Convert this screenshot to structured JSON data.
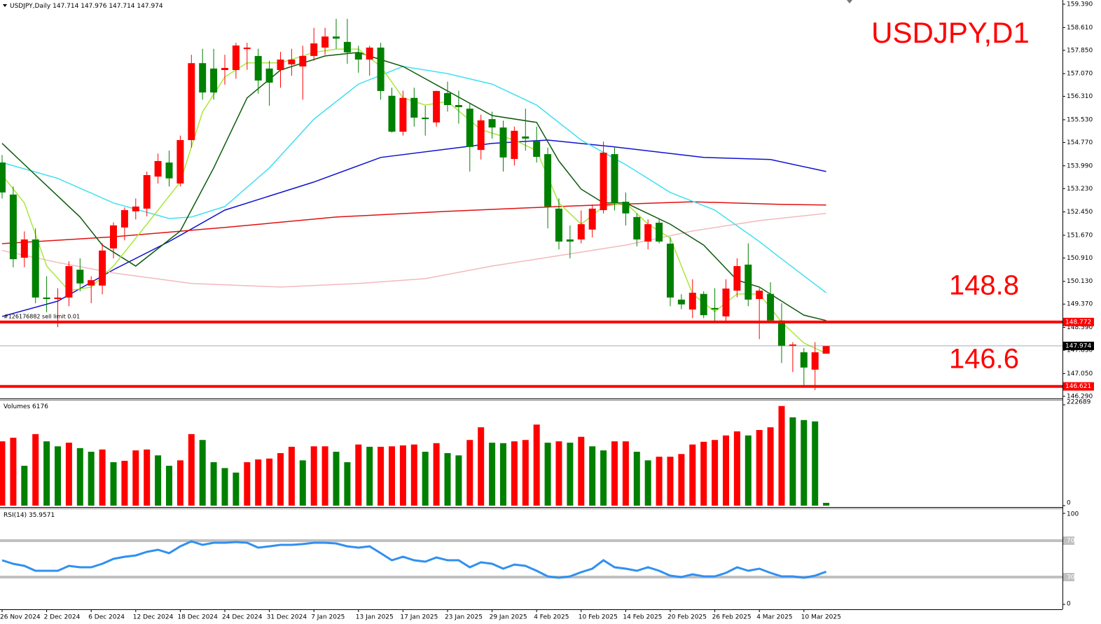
{
  "chart_data": {
    "type": "candlestick",
    "symbol": "USDJPY,Daily",
    "title": "USDJPY,D1",
    "categories": [
      "26 Nov 2024",
      null,
      null,
      null,
      "2 Dec 2024",
      null,
      null,
      null,
      "6 Dec 2024",
      null,
      null,
      null,
      "12 Dec 2024",
      null,
      null,
      null,
      "18 Dec 2024",
      null,
      null,
      null,
      "24 Dec 2024",
      null,
      null,
      null,
      "31 Dec 2024",
      null,
      null,
      null,
      "7 Jan 2025",
      null,
      null,
      null,
      "13 Jan 2025",
      null,
      null,
      null,
      "17 Jan 2025",
      null,
      null,
      null,
      "23 Jan 2025",
      null,
      null,
      null,
      "29 Jan 2025",
      null,
      null,
      null,
      "4 Feb 2025",
      null,
      null,
      null,
      "10 Feb 2025",
      null,
      null,
      null,
      "14 Feb 2025",
      null,
      null,
      null,
      "20 Feb 2025",
      null,
      null,
      null,
      "26 Feb 2025",
      null,
      null,
      null,
      "4 Mar 2025",
      null,
      null,
      null,
      "10 Mar 2025",
      null,
      null
    ],
    "candles": {
      "up_color": "#ff0000",
      "down_color": "#008000",
      "ohlc": [
        [
          154.1,
          154.35,
          152.9,
          153.1
        ],
        [
          153.03,
          153.3,
          150.6,
          150.87
        ],
        [
          150.92,
          151.8,
          150.6,
          151.53
        ],
        [
          151.53,
          151.9,
          149.4,
          149.59
        ],
        [
          149.59,
          150.3,
          149.1,
          149.54
        ],
        [
          149.54,
          149.9,
          148.6,
          149.59
        ],
        [
          149.59,
          150.8,
          149.3,
          150.64
        ],
        [
          150.52,
          150.9,
          149.8,
          150.06
        ],
        [
          149.99,
          150.3,
          149.4,
          150.17
        ],
        [
          149.99,
          151.4,
          149.7,
          151.16
        ],
        [
          151.23,
          152.1,
          150.9,
          152.0
        ],
        [
          151.93,
          152.6,
          151.5,
          152.51
        ],
        [
          152.47,
          152.9,
          152.2,
          152.63
        ],
        [
          152.56,
          153.8,
          152.3,
          153.68
        ],
        [
          153.63,
          154.4,
          153.4,
          154.15
        ],
        [
          154.1,
          154.5,
          153.3,
          153.57
        ],
        [
          153.4,
          155.0,
          153.3,
          154.85
        ],
        [
          154.85,
          157.7,
          154.6,
          157.42
        ],
        [
          157.42,
          157.9,
          156.2,
          156.44
        ],
        [
          157.24,
          157.9,
          156.2,
          156.44
        ],
        [
          157.19,
          157.7,
          156.7,
          157.26
        ],
        [
          157.19,
          158.1,
          156.9,
          158.01
        ],
        [
          157.89,
          158.1,
          157.2,
          157.94
        ],
        [
          157.66,
          157.9,
          156.4,
          156.84
        ],
        [
          157.24,
          157.5,
          156.0,
          156.77
        ],
        [
          157.19,
          157.8,
          156.6,
          157.54
        ],
        [
          157.38,
          157.9,
          157.0,
          157.54
        ],
        [
          157.31,
          158.0,
          156.2,
          157.66
        ],
        [
          157.66,
          158.6,
          157.5,
          158.08
        ],
        [
          157.94,
          158.6,
          157.7,
          158.31
        ],
        [
          158.31,
          158.9,
          157.9,
          158.24
        ],
        [
          158.13,
          158.9,
          157.4,
          157.78
        ],
        [
          157.78,
          158.0,
          157.1,
          157.54
        ],
        [
          157.54,
          158.0,
          157.0,
          157.94
        ],
        [
          157.94,
          158.1,
          156.2,
          156.49
        ],
        [
          156.33,
          156.6,
          155.1,
          155.13
        ],
        [
          155.13,
          156.5,
          155.0,
          156.26
        ],
        [
          156.26,
          156.6,
          155.3,
          155.6
        ],
        [
          155.6,
          156.0,
          155.0,
          155.55
        ],
        [
          155.44,
          156.5,
          155.3,
          156.49
        ],
        [
          156.42,
          156.8,
          155.8,
          156.02
        ],
        [
          156.02,
          156.5,
          155.4,
          155.95
        ],
        [
          155.9,
          156.1,
          153.8,
          154.62
        ],
        [
          154.52,
          155.7,
          154.2,
          155.51
        ],
        [
          155.55,
          155.8,
          154.9,
          155.27
        ],
        [
          155.27,
          155.5,
          153.8,
          154.27
        ],
        [
          154.22,
          155.3,
          154.0,
          155.16
        ],
        [
          154.97,
          155.9,
          154.5,
          154.9
        ],
        [
          154.81,
          155.3,
          154.1,
          154.29
        ],
        [
          154.38,
          154.6,
          151.9,
          152.63
        ],
        [
          152.56,
          152.9,
          151.2,
          151.46
        ],
        [
          151.53,
          152.0,
          150.9,
          151.46
        ],
        [
          151.53,
          152.5,
          151.4,
          152.04
        ],
        [
          151.86,
          152.7,
          151.6,
          152.56
        ],
        [
          152.51,
          154.8,
          152.4,
          154.43
        ],
        [
          154.38,
          154.6,
          152.5,
          152.75
        ],
        [
          152.79,
          153.1,
          152.0,
          152.4
        ],
        [
          152.28,
          152.4,
          151.3,
          151.53
        ],
        [
          151.46,
          152.2,
          151.2,
          152.04
        ],
        [
          152.09,
          152.2,
          151.4,
          151.46
        ],
        [
          151.39,
          151.6,
          149.3,
          149.59
        ],
        [
          149.52,
          149.7,
          149.2,
          149.36
        ],
        [
          149.19,
          150.2,
          148.9,
          149.75
        ],
        [
          149.71,
          149.8,
          148.9,
          149.0
        ],
        [
          149.24,
          149.9,
          148.8,
          149.19
        ],
        [
          148.96,
          150.2,
          148.8,
          149.89
        ],
        [
          149.82,
          150.9,
          149.6,
          150.64
        ],
        [
          150.69,
          151.4,
          149.3,
          149.52
        ],
        [
          149.54,
          149.9,
          148.2,
          149.82
        ],
        [
          149.71,
          150.1,
          148.8,
          148.82
        ],
        [
          148.82,
          149.4,
          147.4,
          147.97
        ],
        [
          147.97,
          148.1,
          147.1,
          148.02
        ],
        [
          147.76,
          147.9,
          146.6,
          147.25
        ],
        [
          147.18,
          148.1,
          146.5,
          147.76
        ],
        [
          147.714,
          147.976,
          147.714,
          147.974
        ]
      ]
    },
    "moving_averages": [
      {
        "color": "#1010d0",
        "x": [
          0,
          5,
          10,
          15,
          20,
          28,
          34,
          44,
          49,
          55,
          63,
          69,
          74
        ],
        "values": [
          148.96,
          149.47,
          150.52,
          151.46,
          152.51,
          153.45,
          154.27,
          154.74,
          154.85,
          154.62,
          154.27,
          154.2,
          153.8
        ]
      },
      {
        "color": "#e01010",
        "x": [
          0,
          10,
          20,
          30,
          40,
          50,
          55,
          62,
          70,
          74
        ],
        "values": [
          151.39,
          151.62,
          151.93,
          152.28,
          152.47,
          152.63,
          152.7,
          152.79,
          152.7,
          152.68
        ]
      },
      {
        "color": "#f4b8bc",
        "x": [
          0,
          5,
          10,
          17,
          25,
          32,
          38,
          44,
          50,
          56,
          62,
          68,
          74
        ],
        "values": [
          151.16,
          150.76,
          150.41,
          150.06,
          149.94,
          150.06,
          150.22,
          150.64,
          150.99,
          151.34,
          151.81,
          152.16,
          152.4
        ]
      },
      {
        "color": "#40e0f0",
        "x": [
          0,
          5,
          10,
          15,
          17,
          20,
          24,
          28,
          32,
          36,
          40,
          44,
          48,
          52,
          56,
          60,
          64,
          68,
          70,
          74
        ],
        "values": [
          154.1,
          153.57,
          152.75,
          152.23,
          152.28,
          152.63,
          153.92,
          155.55,
          156.72,
          157.31,
          157.07,
          156.72,
          156.02,
          154.85,
          154.03,
          153.1,
          152.51,
          151.46,
          150.88,
          149.75
        ]
      },
      {
        "color": "#0b5a0b",
        "x": [
          0,
          3,
          7,
          9,
          12,
          16,
          19,
          22,
          25,
          29,
          32,
          34,
          36,
          40,
          44,
          48,
          50,
          52,
          54,
          56,
          60,
          63,
          66,
          68,
          70,
          72,
          74
        ],
        "values": [
          154.74,
          153.68,
          152.28,
          151.34,
          150.64,
          151.81,
          153.92,
          156.26,
          157.19,
          157.66,
          157.78,
          157.54,
          157.31,
          156.49,
          155.67,
          155.44,
          154.15,
          153.21,
          152.75,
          152.75,
          152.04,
          151.34,
          150.17,
          149.94,
          149.47,
          149.0,
          148.82
        ]
      },
      {
        "color": "#a8e83a",
        "x": [
          0,
          2,
          4,
          6,
          8,
          10,
          13,
          16,
          18,
          20,
          22,
          25,
          28,
          30,
          32,
          34,
          36,
          38,
          40,
          43,
          46,
          48,
          50,
          52,
          54,
          56,
          58,
          60,
          62,
          64,
          66,
          68,
          70,
          72,
          74
        ],
        "values": [
          153.68,
          152.75,
          150.64,
          149.82,
          149.94,
          150.64,
          152.04,
          153.45,
          155.79,
          156.96,
          157.43,
          157.43,
          157.78,
          157.89,
          157.89,
          157.31,
          156.26,
          156.02,
          156.14,
          155.2,
          154.85,
          154.5,
          152.75,
          152.04,
          152.63,
          152.75,
          152.04,
          151.58,
          149.71,
          149.12,
          149.71,
          149.71,
          148.77,
          148.07,
          147.72
        ]
      }
    ],
    "levels": [
      {
        "value": 148.772,
        "label": "148.8",
        "note": "#126176882 sell limit 0.01",
        "color": "#ff0000"
      },
      {
        "value": 146.621,
        "label": "146.6",
        "color": "#ff0000"
      }
    ],
    "ylim": [
      146.24,
      159.53
    ],
    "yticks": [
      {
        "value": 159.39,
        "label": "159.390"
      },
      {
        "value": 158.61,
        "label": "158.610"
      },
      {
        "value": 157.85,
        "label": "157.850"
      },
      {
        "value": 157.07,
        "label": "157.070"
      },
      {
        "value": 156.31,
        "label": "156.310"
      },
      {
        "value": 155.53,
        "label": "155.530"
      },
      {
        "value": 154.77,
        "label": "154.770"
      },
      {
        "value": 153.99,
        "label": "153.990"
      },
      {
        "value": 153.23,
        "label": "153.230"
      },
      {
        "value": 152.45,
        "label": "152.450"
      },
      {
        "value": 151.67,
        "label": "151.670"
      },
      {
        "value": 150.91,
        "label": "150.910"
      },
      {
        "value": 150.13,
        "label": "150.130"
      },
      {
        "value": 149.37,
        "label": "149.370"
      },
      {
        "value": 148.59,
        "label": "148.590"
      },
      {
        "value": 147.83,
        "label": "147.830"
      },
      {
        "value": 147.05,
        "label": "147.050"
      },
      {
        "value": 146.29,
        "label": "146.290"
      }
    ],
    "volume": {
      "title": "Volumes",
      "up_color": "#ff0000",
      "down_color": "#008000",
      "values": [
        142000,
        150000,
        88000,
        158000,
        142000,
        131000,
        139000,
        127000,
        119000,
        124000,
        96000,
        99000,
        122000,
        124000,
        111000,
        88000,
        100000,
        158000,
        145000,
        96000,
        83000,
        73000,
        96000,
        102000,
        104000,
        116000,
        130000,
        100000,
        131000,
        131000,
        119000,
        96000,
        135000,
        130000,
        130000,
        131000,
        133000,
        135000,
        119000,
        138000,
        116000,
        111000,
        145000,
        173000,
        139000,
        138000,
        142000,
        145000,
        179000,
        139000,
        142000,
        139000,
        152000,
        131000,
        122000,
        142000,
        142000,
        119000,
        100000,
        108000,
        108000,
        114000,
        135000,
        141000,
        145000,
        155000,
        164000,
        155000,
        167000,
        173000,
        220000,
        195000,
        189000,
        186000,
        6176
      ],
      "ylim": [
        0,
        222689
      ],
      "yticks": [
        0,
        222689
      ]
    },
    "rsi": {
      "title": "RSI(14)",
      "color": "#3090f0",
      "values": [
        48.5,
        44.6,
        42.3,
        36.9,
        36.9,
        36.9,
        42.3,
        40.8,
        40.8,
        44.6,
        50.0,
        52.3,
        53.8,
        57.7,
        60.0,
        56.2,
        63.8,
        69.2,
        65.4,
        67.7,
        67.7,
        68.5,
        67.7,
        62.3,
        63.8,
        65.4,
        65.4,
        66.2,
        67.7,
        67.7,
        66.9,
        63.8,
        62.3,
        63.8,
        56.2,
        48.5,
        52.3,
        48.5,
        46.9,
        51.5,
        48.5,
        48.5,
        40.8,
        46.2,
        44.6,
        39.2,
        43.8,
        42.3,
        36.9,
        30.8,
        29.2,
        30.8,
        35.4,
        39.2,
        48.5,
        40.8,
        39.2,
        36.9,
        40.8,
        36.9,
        31.5,
        30.0,
        33.1,
        30.8,
        30.8,
        34.6,
        40.8,
        36.9,
        39.2,
        34.6,
        30.8,
        30.8,
        29.2,
        31.5,
        35.9571
      ],
      "ylim": [
        0,
        100
      ],
      "yticks": [
        0,
        30,
        70,
        100
      ]
    }
  }
}
